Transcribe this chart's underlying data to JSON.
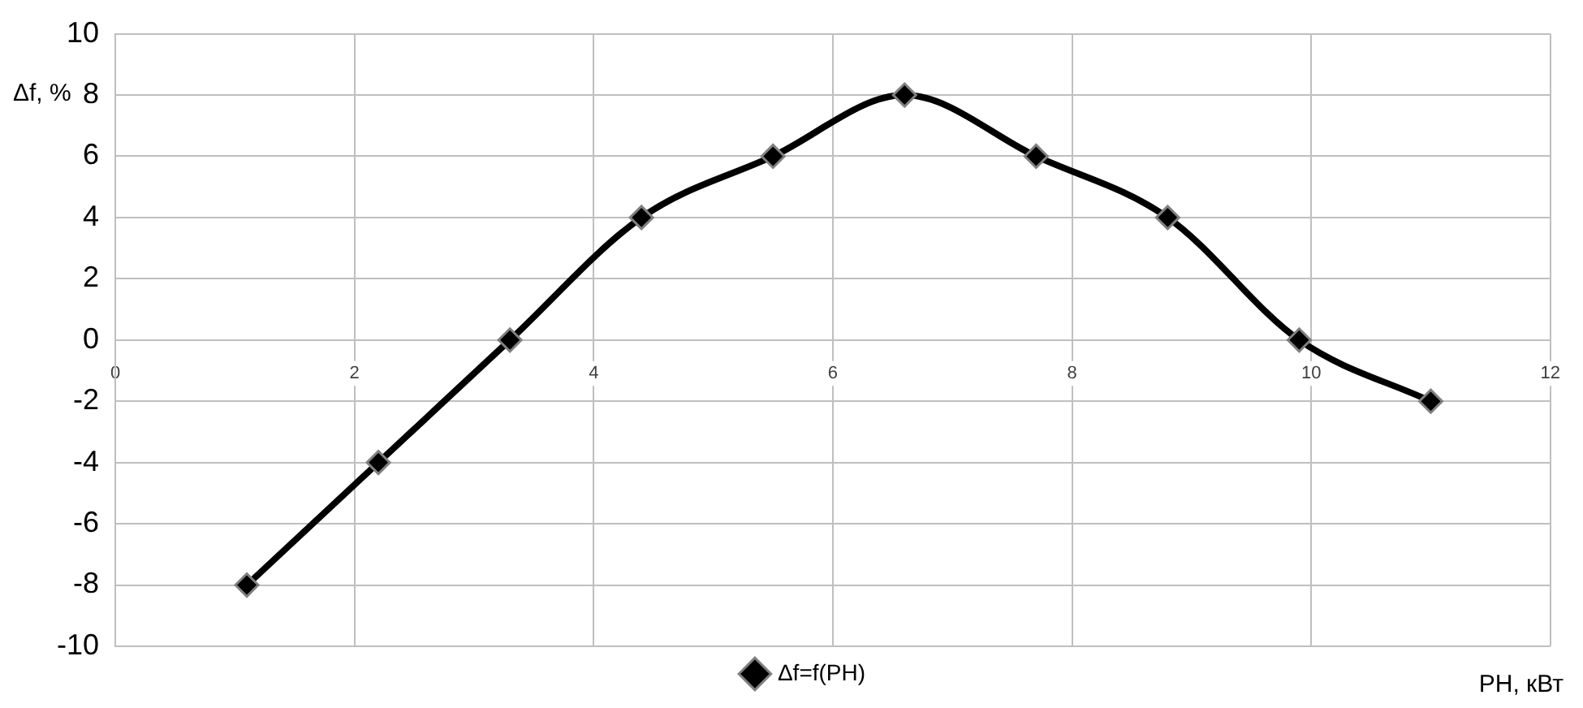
{
  "chart_data": {
    "type": "line",
    "xlabel": "PH, кВт",
    "ylabel": "Δf, %",
    "x": [
      1.1,
      2.2,
      3.3,
      4.4,
      5.5,
      6.6,
      7.7,
      8.8,
      9.9,
      11
    ],
    "series": [
      {
        "name": "Δf=f(PH)",
        "color": "#000000",
        "values": [
          -8,
          -4,
          0,
          4,
          6,
          8,
          6,
          4,
          0,
          -2
        ]
      }
    ],
    "xlim": [
      0,
      12
    ],
    "xticks": [
      0,
      2,
      4,
      6,
      8,
      10,
      12
    ],
    "ylim": [
      -10,
      10
    ],
    "yticks": [
      -10,
      -8,
      -6,
      -4,
      -2,
      0,
      2,
      4,
      6,
      8,
      10
    ],
    "grid": true,
    "legend": "bottom",
    "marker": "diamond",
    "line_style": "solid"
  }
}
